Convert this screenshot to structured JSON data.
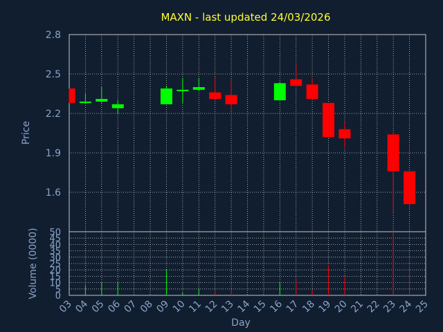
{
  "chart_data": {
    "type": "candlestick",
    "title": "MAXN - last updated 24/03/2026",
    "xlabel": "Day",
    "price_ylabel": "Price",
    "volume_ylabel": "Volume (0000)",
    "price_ylim": [
      1.3,
      2.8
    ],
    "price_yticks": [
      "2.8",
      "2.5",
      "2.2",
      "1.9",
      "1.6"
    ],
    "volume_ylim": [
      0,
      50
    ],
    "volume_yticks": [
      "50",
      "45",
      "40",
      "35",
      "30",
      "25",
      "20",
      "15",
      "10",
      "5",
      "0"
    ],
    "x_tick_labels": [
      "03",
      "04",
      "05",
      "06",
      "07",
      "08",
      "09",
      "10",
      "11",
      "12",
      "13",
      "14",
      "15",
      "16",
      "17",
      "18",
      "19",
      "20",
      "21",
      "22",
      "23",
      "24",
      "25"
    ],
    "grid": true,
    "colors": {
      "up": "#00ff00",
      "down": "#ff0000",
      "grid": "#c8c8c8",
      "background": "#111e30",
      "title": "#ffff33",
      "text": "#8aa4c8"
    },
    "candles": [
      {
        "day": "03",
        "open": 2.39,
        "close": 2.28,
        "high": 2.39,
        "low": 2.28,
        "volume": 0
      },
      {
        "day": "04",
        "open": 2.28,
        "close": 2.29,
        "high": 2.35,
        "low": 2.28,
        "volume": 8
      },
      {
        "day": "05",
        "open": 2.29,
        "close": 2.31,
        "high": 2.4,
        "low": 2.28,
        "volume": 10
      },
      {
        "day": "06",
        "open": 2.24,
        "close": 2.27,
        "high": 2.3,
        "low": 2.2,
        "volume": 10
      },
      {
        "day": "09",
        "open": 2.27,
        "close": 2.39,
        "high": 2.41,
        "low": 2.27,
        "volume": 20
      },
      {
        "day": "10",
        "open": 2.37,
        "close": 2.38,
        "high": 2.47,
        "low": 2.28,
        "volume": 2
      },
      {
        "day": "11",
        "open": 2.38,
        "close": 2.4,
        "high": 2.47,
        "low": 2.37,
        "volume": 5
      },
      {
        "day": "12",
        "open": 2.36,
        "close": 2.31,
        "high": 2.48,
        "low": 2.31,
        "volume": 3
      },
      {
        "day": "13",
        "open": 2.34,
        "close": 2.27,
        "high": 2.46,
        "low": 2.22,
        "volume": 4
      },
      {
        "day": "16",
        "open": 2.3,
        "close": 2.43,
        "high": 2.44,
        "low": 2.3,
        "volume": 10
      },
      {
        "day": "17",
        "open": 2.46,
        "close": 2.41,
        "high": 2.57,
        "low": 2.4,
        "volume": 12
      },
      {
        "day": "18",
        "open": 2.42,
        "close": 2.31,
        "high": 2.47,
        "low": 2.31,
        "volume": 4
      },
      {
        "day": "19",
        "open": 2.28,
        "close": 2.02,
        "high": 2.28,
        "low": 2.02,
        "volume": 24
      },
      {
        "day": "20",
        "open": 2.08,
        "close": 2.01,
        "high": 2.13,
        "low": 1.94,
        "volume": 15
      },
      {
        "day": "23",
        "open": 2.04,
        "close": 1.76,
        "high": 2.06,
        "low": 1.44,
        "volume": 50
      },
      {
        "day": "24",
        "open": 1.76,
        "close": 1.51,
        "high": 1.76,
        "low": 1.47,
        "volume": 22
      }
    ]
  }
}
